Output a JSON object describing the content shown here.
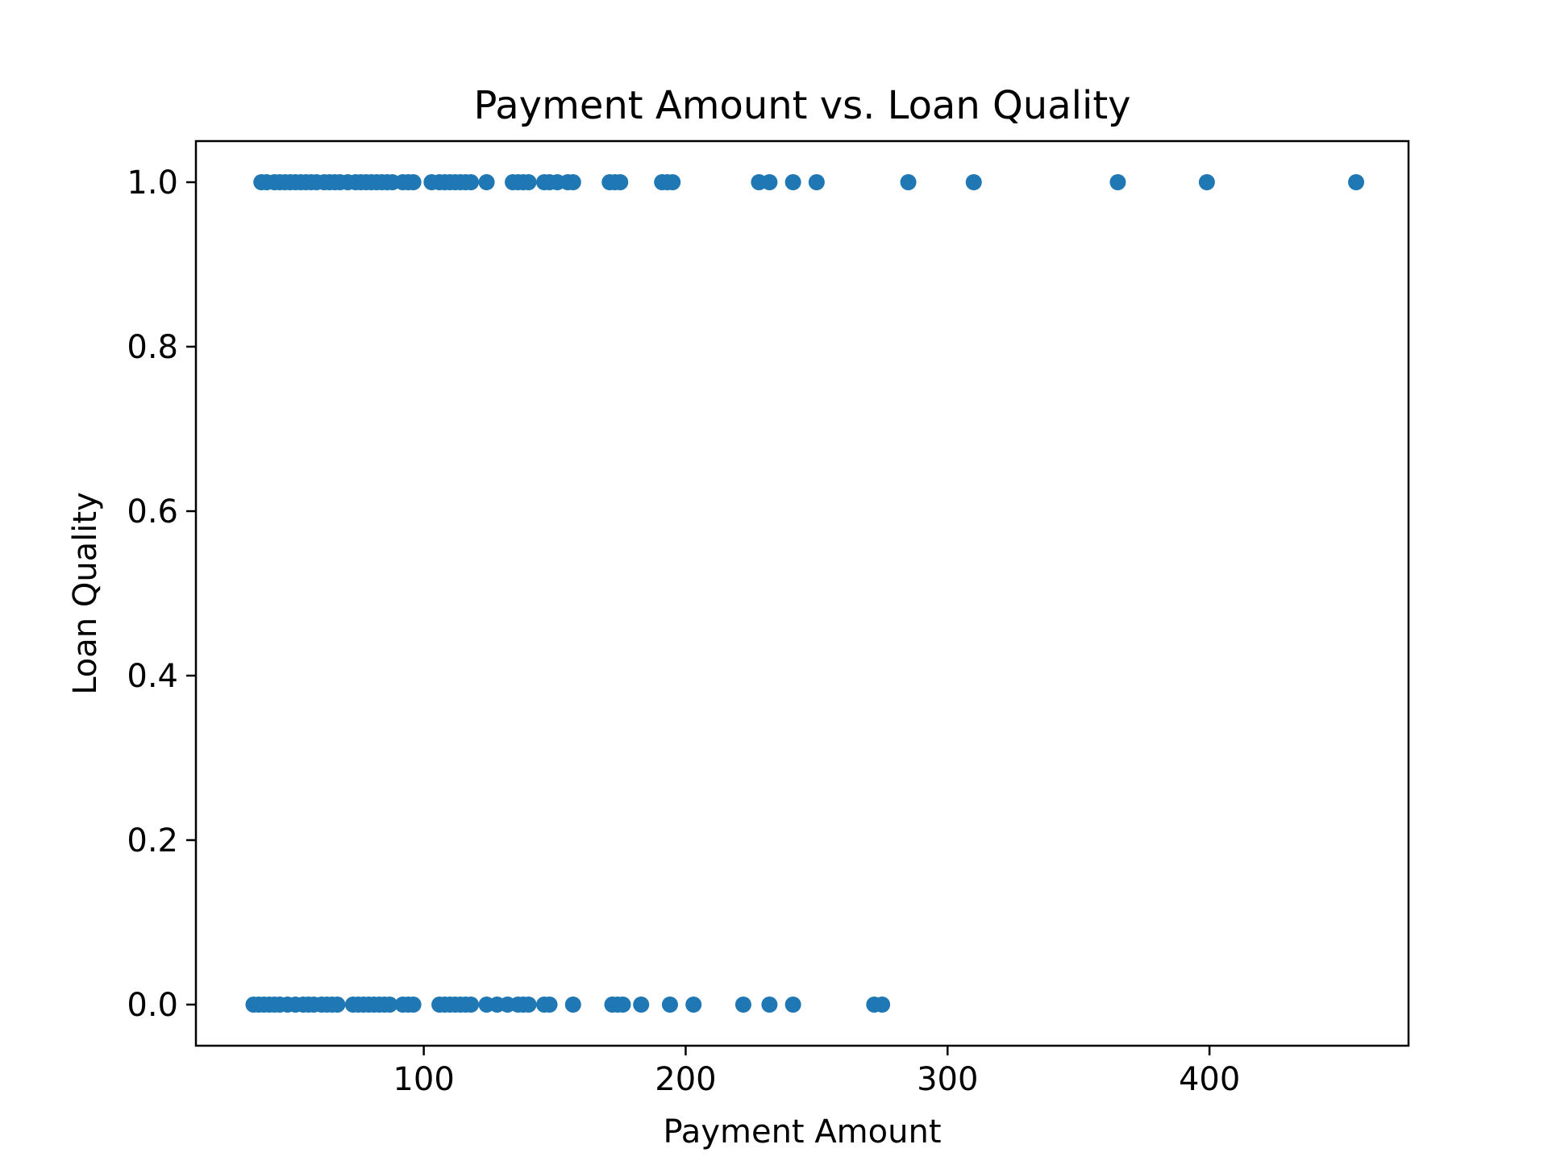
{
  "chart_data": {
    "type": "scatter",
    "title": "Payment Amount vs. Loan Quality",
    "xlabel": "Payment Amount",
    "ylabel": "Loan Quality",
    "xlim": [
      13,
      476
    ],
    "ylim": [
      -0.05,
      1.05
    ],
    "xticks": [
      100,
      200,
      300,
      400
    ],
    "yticks": [
      0.0,
      0.2,
      0.4,
      0.6,
      0.8,
      1.0
    ],
    "xtick_labels": [
      "100",
      "200",
      "300",
      "400"
    ],
    "ytick_labels": [
      "0.0",
      "0.2",
      "0.4",
      "0.6",
      "0.8",
      "1.0"
    ],
    "grid": false,
    "point_color": "#1f77b4",
    "series": [
      {
        "x": [
          38,
          40,
          43,
          45,
          47,
          49,
          51,
          53,
          55,
          57,
          59,
          62,
          64,
          66,
          68,
          71,
          74,
          76,
          78,
          80,
          82,
          84,
          86,
          88,
          92,
          94,
          96,
          103,
          106,
          108,
          110,
          112,
          114,
          116,
          118,
          124,
          134,
          136,
          138,
          140,
          146,
          148,
          151,
          155,
          157,
          171,
          173,
          175,
          191,
          193,
          195,
          228,
          232,
          241,
          250,
          285,
          310,
          365,
          399,
          456
        ],
        "y": [
          1,
          1,
          1,
          1,
          1,
          1,
          1,
          1,
          1,
          1,
          1,
          1,
          1,
          1,
          1,
          1,
          1,
          1,
          1,
          1,
          1,
          1,
          1,
          1,
          1,
          1,
          1,
          1,
          1,
          1,
          1,
          1,
          1,
          1,
          1,
          1,
          1,
          1,
          1,
          1,
          1,
          1,
          1,
          1,
          1,
          1,
          1,
          1,
          1,
          1,
          1,
          1,
          1,
          1,
          1,
          1,
          1,
          1,
          1,
          1
        ]
      },
      {
        "x": [
          35,
          37,
          39,
          41,
          43,
          45,
          48,
          51,
          54,
          56,
          58,
          61,
          63,
          65,
          67,
          73,
          75,
          77,
          79,
          81,
          83,
          85,
          87,
          92,
          94,
          96,
          106,
          108,
          110,
          112,
          114,
          116,
          118,
          124,
          128,
          132,
          136,
          138,
          140,
          146,
          148,
          157,
          172,
          174,
          176,
          183,
          194,
          203,
          222,
          232,
          241,
          272,
          275
        ],
        "y": [
          0,
          0,
          0,
          0,
          0,
          0,
          0,
          0,
          0,
          0,
          0,
          0,
          0,
          0,
          0,
          0,
          0,
          0,
          0,
          0,
          0,
          0,
          0,
          0,
          0,
          0,
          0,
          0,
          0,
          0,
          0,
          0,
          0,
          0,
          0,
          0,
          0,
          0,
          0,
          0,
          0,
          0,
          0,
          0,
          0,
          0,
          0,
          0,
          0,
          0,
          0,
          0,
          0
        ]
      }
    ]
  }
}
